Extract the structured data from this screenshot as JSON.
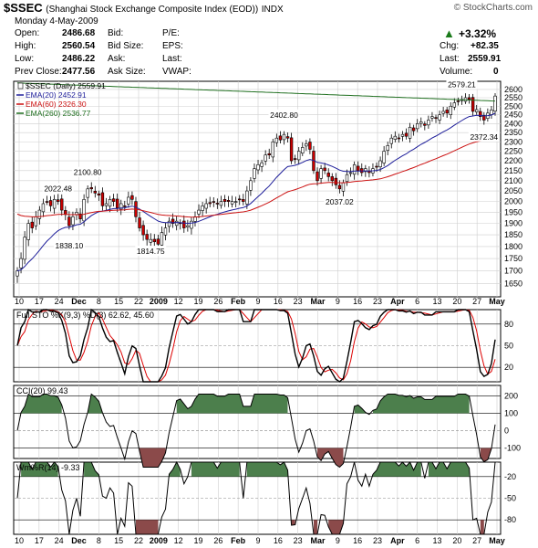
{
  "header": {
    "symbol": "$SSEC",
    "name": "(Shanghai Stock Exchange Composite Index (EOD))",
    "exchange": "INDX",
    "credit": "© StockCharts.com",
    "date": "Monday  4-May-2009",
    "open_label": "Open:",
    "open": "2486.68",
    "high_label": "High:",
    "high": "2560.54",
    "low_label": "Low:",
    "low": "2486.22",
    "prevclose_label": "Prev Close:",
    "prevclose": "2477.56",
    "bid_label": "Bid:",
    "bidsize_label": "Bid Size:",
    "ask_label": "Ask:",
    "asksize_label": "Ask Size:",
    "pe_label": "P/E:",
    "eps_label": "EPS:",
    "last_label": "Last:",
    "vwap_label": "VWAP:",
    "pct_change": "+3.32%",
    "chg_label": "Chg:",
    "chg": "+82.35",
    "last2_label": "Last:",
    "last2": "2559.91",
    "volume_label": "Volume:",
    "volume": "0"
  },
  "colors": {
    "up": "#ffffff",
    "down": "#cc0000",
    "ema20": "#1e1e9a",
    "ema60": "#cc1111",
    "ema260": "#1f6f1f",
    "fill_green": "#4c7f4c",
    "fill_red": "#8b4a4a",
    "grid": "#cfcfcf",
    "sto_k": "#000000",
    "sto_d": "#dd0000"
  },
  "chart_data": [
    {
      "type": "candlestick",
      "title": "$SSEC (Daily) 2559.91",
      "legend": [
        "$SSEC (Daily) 2559.91",
        "EMA(20) 2452.91",
        "EMA(60) 2326.30",
        "EMA(260) 2536.77"
      ],
      "ylim": [
        1600,
        2650
      ],
      "yticks": [
        1650,
        1700,
        1750,
        1800,
        1850,
        1900,
        1950,
        2000,
        2050,
        2100,
        2150,
        2200,
        2250,
        2300,
        2350,
        2400,
        2450,
        2500,
        2550,
        2600
      ],
      "yaxis": "log",
      "xticks": [
        "10",
        "17",
        "24",
        "Dec",
        "8",
        "15",
        "22",
        "2009",
        "12",
        "19",
        "26",
        "Feb",
        "9",
        "16",
        "23",
        "Mar",
        "9",
        "16",
        "23",
        "Apr",
        "6",
        "13",
        "20",
        "27",
        "May"
      ],
      "annotations": [
        {
          "text": "2022.48",
          "i": 11,
          "v": 2022.48
        },
        {
          "text": "2100.80",
          "i": 19,
          "v": 2100.8
        },
        {
          "text": "1838.10",
          "i": 14,
          "v": 1838.1
        },
        {
          "text": "1814.75",
          "i": 36,
          "v": 1814.75
        },
        {
          "text": "2402.80",
          "i": 72,
          "v": 2402.8
        },
        {
          "text": "2037.02",
          "i": 87,
          "v": 2037.02
        },
        {
          "text": "2579.21",
          "i": 120,
          "v": 2579.21
        },
        {
          "text": "2372.34",
          "i": 126,
          "v": 2372.34
        }
      ],
      "closes": [
        1700,
        1750,
        1840,
        1900,
        1880,
        1930,
        1960,
        1990,
        2000,
        1980,
        2010,
        2000,
        1960,
        1940,
        1890,
        1930,
        1950,
        1920,
        2010,
        2060,
        2060,
        2040,
        2030,
        1980,
        1990,
        2010,
        2000,
        1970,
        1990,
        1980,
        2020,
        2010,
        1930,
        1880,
        1850,
        1830,
        1830,
        1820,
        1810,
        1860,
        1880,
        1910,
        1900,
        1910,
        1900,
        1880,
        1890,
        1910,
        1930,
        1960,
        1980,
        1990,
        1990,
        2000,
        1990,
        2000,
        2000,
        2000,
        2000,
        2000,
        2010,
        2000,
        2050,
        2100,
        2160,
        2180,
        2190,
        2230,
        2230,
        2300,
        2320,
        2310,
        2340,
        2320,
        2200,
        2210,
        2250,
        2270,
        2290,
        2260,
        2150,
        2100,
        2160,
        2150,
        2120,
        2100,
        2080,
        2060,
        2090,
        2130,
        2140,
        2180,
        2150,
        2140,
        2160,
        2140,
        2160,
        2170,
        2200,
        2250,
        2280,
        2320,
        2330,
        2320,
        2340,
        2330,
        2380,
        2360,
        2400,
        2410,
        2390,
        2420,
        2440,
        2430,
        2450,
        2470,
        2460,
        2500,
        2520,
        2530,
        2540,
        2550,
        2540,
        2470,
        2480,
        2440,
        2420,
        2460,
        2478,
        2560
      ],
      "series": [
        {
          "name": "EMA(20) 2452.91"
        },
        {
          "name": "EMA(60) 2326.30"
        },
        {
          "name": "EMA(260) 2536.77"
        }
      ]
    },
    {
      "type": "line",
      "title": "Full STO %K(9,3) %D(3) 62.62, 45.60",
      "series": [
        {
          "name": "%K(9,3)",
          "last": 62.62
        },
        {
          "name": "%D(3)",
          "last": 45.6
        }
      ],
      "ylim": [
        0,
        100
      ],
      "yticks": [
        20,
        50,
        80
      ]
    },
    {
      "type": "area",
      "title": "CCI(20) 99.43",
      "series": [
        {
          "name": "CCI(20)",
          "last": 99.43
        }
      ],
      "ylim": [
        -160,
        260
      ],
      "yticks": [
        -100,
        0,
        100,
        200
      ]
    },
    {
      "type": "area",
      "title": "Wm%R(14) -9.33",
      "series": [
        {
          "name": "Wm%R(14)",
          "last": -9.33
        }
      ],
      "ylim": [
        -100,
        0
      ],
      "yticks": [
        -80,
        -50,
        -20
      ]
    }
  ]
}
